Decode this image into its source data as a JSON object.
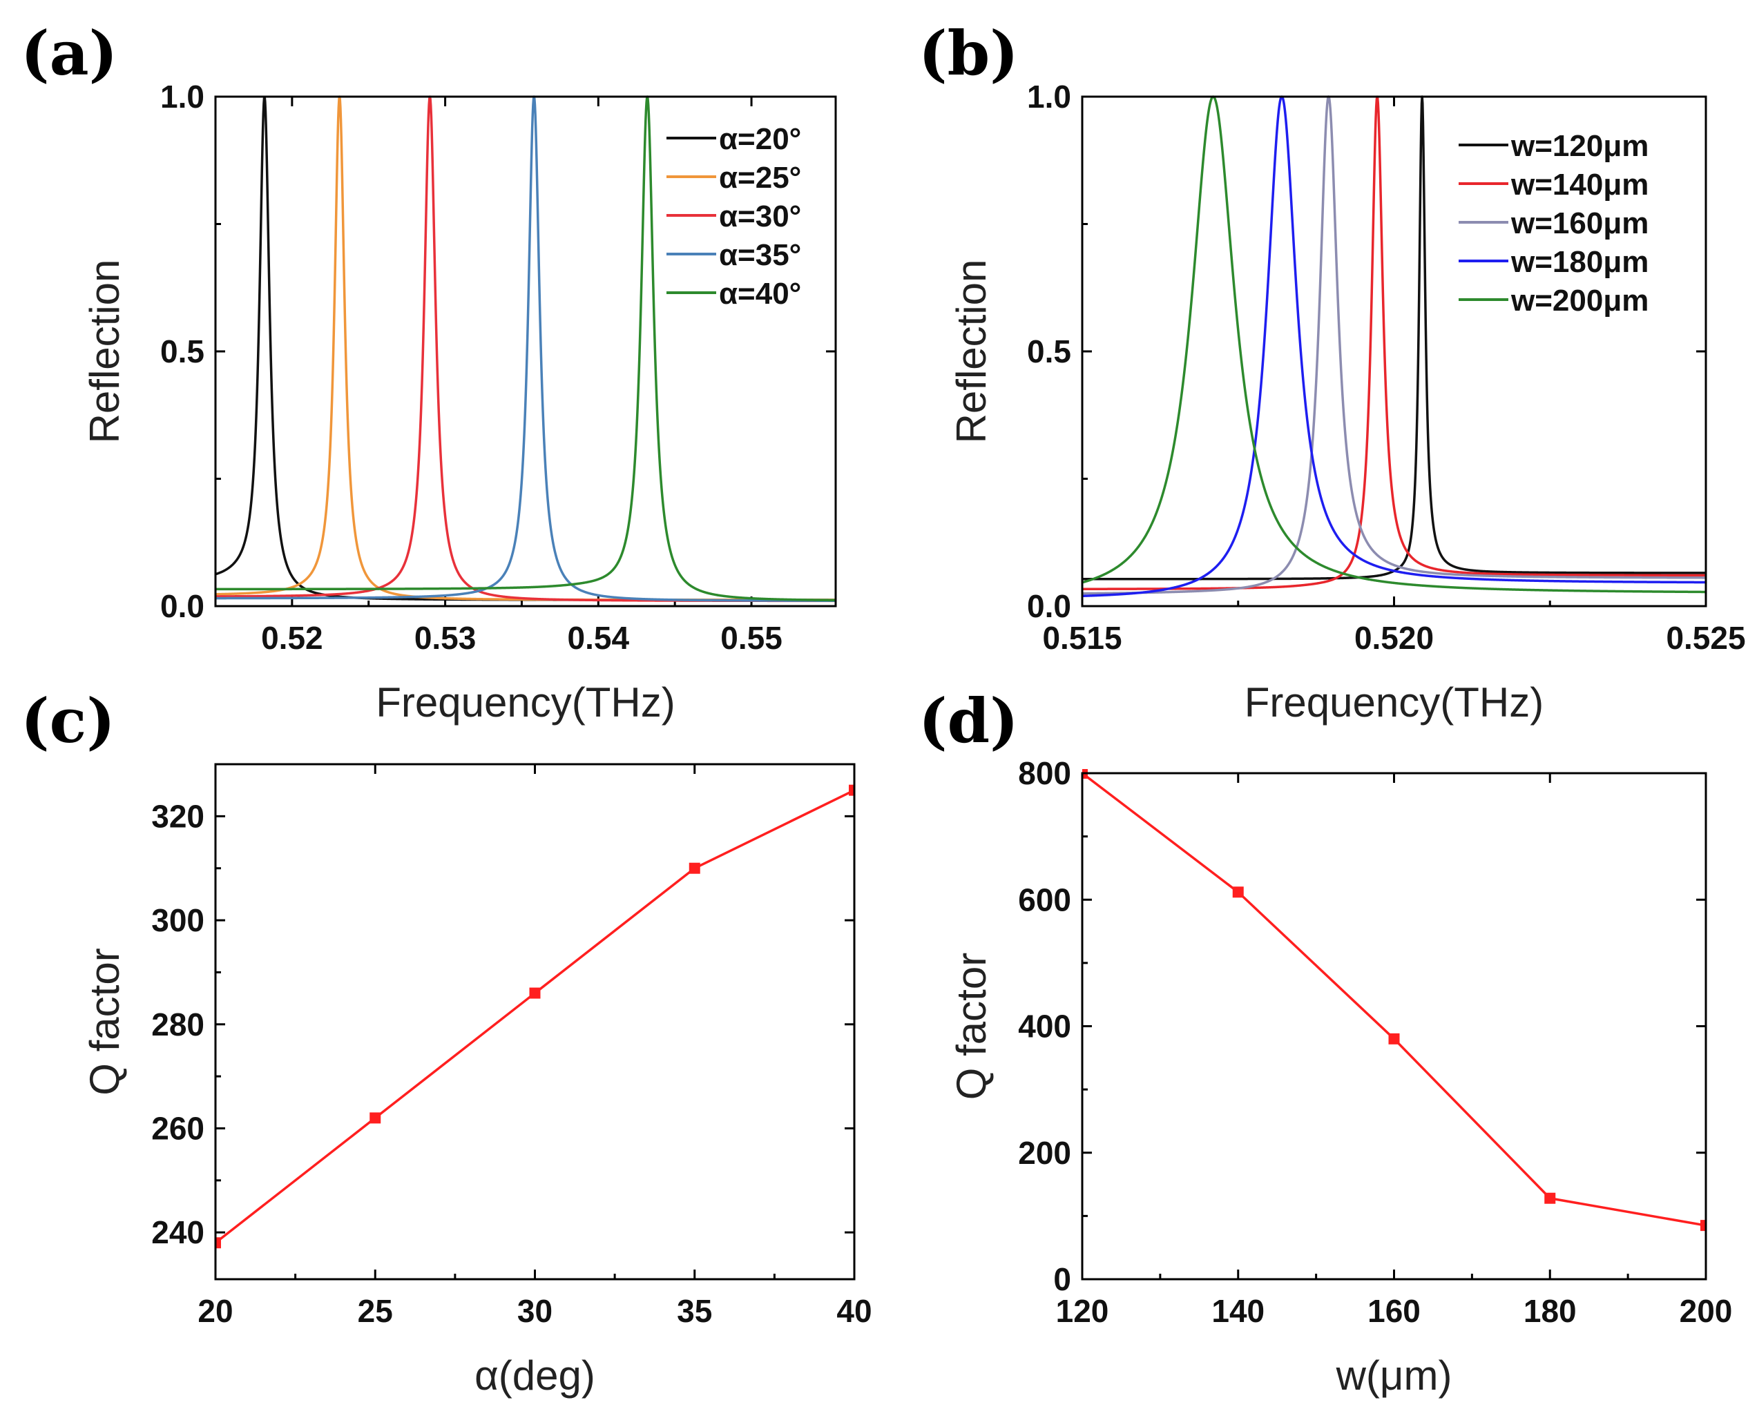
{
  "figure": {
    "panels": [
      "(a)",
      "(b)",
      "(c)",
      "(d)"
    ]
  },
  "chart_data": [
    {
      "type": "line",
      "panel": "(a)",
      "xlabel": "Frequency(THz)",
      "ylabel": "Reflection",
      "xlim": [
        0.515,
        0.5555
      ],
      "ylim": [
        0,
        1.0
      ],
      "xticks": [
        0.52,
        0.53,
        0.54,
        0.55
      ],
      "xtick_labels": [
        "0.52",
        "0.53",
        "0.54",
        "0.55"
      ],
      "yticks": [
        0,
        0.5,
        1.0
      ],
      "ytick_labels": [
        "0.0",
        "0.5",
        "1.0"
      ],
      "legend_position": "top-right",
      "series": [
        {
          "name": "α=20°",
          "color": "#111111",
          "resonance": 0.5182,
          "width": 0.0008,
          "dip": 0.5155,
          "base": 0.045,
          "far": 0.012
        },
        {
          "name": "α=25°",
          "color": "#f0963a",
          "resonance": 0.5231,
          "width": 0.0008,
          "dip": 0.5205,
          "base": 0.018,
          "far": 0.012
        },
        {
          "name": "α=30°",
          "color": "#e8313a",
          "resonance": 0.529,
          "width": 0.0009,
          "dip": 0.5252,
          "base": 0.015,
          "far": 0.01
        },
        {
          "name": "α=35°",
          "color": "#4a81b8",
          "resonance": 0.5358,
          "width": 0.0009,
          "dip": 0.531,
          "base": 0.012,
          "far": 0.01
        },
        {
          "name": "α=40°",
          "color": "#2d8a2d",
          "resonance": 0.5432,
          "width": 0.001,
          "dip": 0.537,
          "base": 0.03,
          "far": 0.01
        }
      ]
    },
    {
      "type": "line",
      "panel": "(b)",
      "xlabel": "Frequency(THz)",
      "ylabel": "Reflection",
      "xlim": [
        0.515,
        0.525
      ],
      "ylim": [
        0,
        1.0
      ],
      "xticks": [
        0.515,
        0.52,
        0.525
      ],
      "xtick_labels": [
        "0.515",
        "0.520",
        "0.525"
      ],
      "yticks": [
        0,
        0.5,
        1.0
      ],
      "ytick_labels": [
        "0.0",
        "0.5",
        "1.0"
      ],
      "legend_position": "top-right",
      "series": [
        {
          "name": "w=120μm",
          "color": "#111111",
          "resonance": 0.52045,
          "width": 0.00012,
          "dip": 0.51988,
          "base": 0.05,
          "far": 0.065
        },
        {
          "name": "w=140μm",
          "color": "#e8262c",
          "resonance": 0.51973,
          "width": 0.00022,
          "dip": 0.51835,
          "base": 0.03,
          "far": 0.06
        },
        {
          "name": "w=160μm",
          "color": "#8c8cb0",
          "resonance": 0.51895,
          "width": 0.00035,
          "dip": 0.5162,
          "base": 0.02,
          "far": 0.055
        },
        {
          "name": "w=180μm",
          "color": "#1e1ef0",
          "resonance": 0.5182,
          "width": 0.00058,
          "dip": 0.512,
          "base": 0.01,
          "far": 0.045
        },
        {
          "name": "w=200μm",
          "color": "#2d8a2d",
          "resonance": 0.5171,
          "width": 0.00085,
          "dip": 0.505,
          "base": 0.01,
          "far": 0.025
        }
      ]
    },
    {
      "type": "line",
      "panel": "(c)",
      "xlabel": "α(deg)",
      "ylabel": "Q factor",
      "xlim": [
        20,
        40
      ],
      "ylim": [
        231,
        330
      ],
      "xticks": [
        20,
        25,
        30,
        35,
        40
      ],
      "xtick_labels": [
        "20",
        "25",
        "30",
        "35",
        "40"
      ],
      "yticks": [
        240,
        260,
        280,
        300,
        320
      ],
      "ytick_labels": [
        "240",
        "260",
        "280",
        "300",
        "320"
      ],
      "series": [
        {
          "name": "Q factor",
          "color": "#ff1f1f",
          "x": [
            20,
            25,
            30,
            35,
            40
          ],
          "y": [
            238,
            262,
            286,
            310,
            325
          ]
        }
      ]
    },
    {
      "type": "line",
      "panel": "(d)",
      "xlabel": "w(μm)",
      "ylabel": "Q factor",
      "xlim": [
        120,
        200
      ],
      "ylim": [
        0,
        800
      ],
      "xticks": [
        120,
        140,
        160,
        180,
        200
      ],
      "xtick_labels": [
        "120",
        "140",
        "160",
        "180",
        "200"
      ],
      "yticks": [
        0,
        200,
        400,
        600,
        800
      ],
      "ytick_labels": [
        "0",
        "200",
        "400",
        "600",
        "800"
      ],
      "series": [
        {
          "name": "Q factor",
          "color": "#ff1f1f",
          "x": [
            120,
            140,
            160,
            180,
            200
          ],
          "y": [
            800,
            612,
            380,
            128,
            85
          ]
        }
      ]
    }
  ]
}
